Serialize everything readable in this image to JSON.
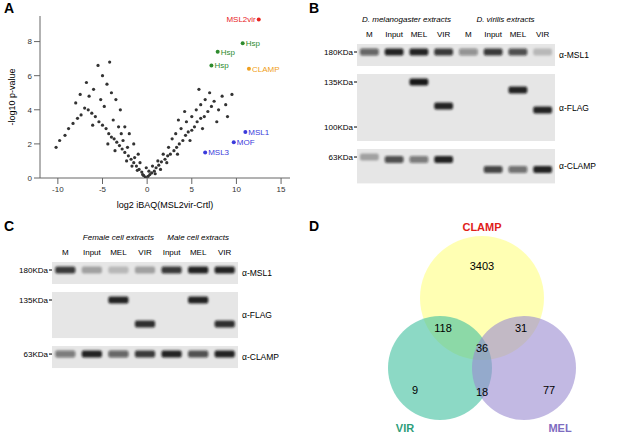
{
  "chart_data": [
    {
      "type": "scatter",
      "panel": "A",
      "x_label": "log2 iBAQ(MSL2vir-Crtl)",
      "y_label": "-log10 p-value",
      "xlim": [
        -12,
        16
      ],
      "ylim": [
        0,
        9.5
      ],
      "xticks": [
        -10,
        -5,
        0,
        5,
        10,
        15
      ],
      "yticks": [
        0,
        2,
        4,
        6,
        8
      ],
      "grid": false,
      "color": "#333333",
      "x": [
        -0.2,
        0.1,
        0.3,
        -0.4,
        0.5,
        -0.6,
        0.8,
        -0.9,
        1.0,
        -1.2,
        1.3,
        -1.5,
        1.6,
        -1.8,
        2.0,
        -2.1,
        2.3,
        -2.5,
        2.6,
        -2.8,
        3.0,
        -3.1,
        3.3,
        -3.4,
        3.6,
        -3.7,
        4.0,
        -4.0,
        4.3,
        -4.3,
        4.6,
        -4.6,
        5.0,
        -5.0,
        5.3,
        -5.4,
        5.6,
        -5.8,
        6.0,
        -6.2,
        6.4,
        -6.6,
        6.8,
        -7.0,
        7.2,
        -7.4,
        7.5,
        -7.8,
        8.0,
        -8.3,
        8.4,
        -8.8,
        9.0,
        -9.2,
        -9.8,
        -10.2,
        -3.0,
        -3.5,
        -4.0,
        -4.5,
        -5.0,
        -5.5,
        -6.0,
        -6.5,
        -2.5,
        -2.0,
        -1.5,
        -1.0,
        -3.8,
        -4.8,
        -5.2,
        -6.8,
        -7.5,
        -8.0,
        -4.2,
        -3.2,
        -2.7,
        -2.2,
        -1.4,
        -0.8,
        0.6,
        1.2,
        1.8,
        2.4,
        2.8,
        3.2,
        3.8,
        4.4,
        5.0,
        5.5,
        6.0,
        6.5,
        7.0,
        3.5,
        4.2,
        5.8,
        2.2,
        1.5,
        0.9,
        -0.5,
        -1.1,
        -1.7,
        -2.3,
        -3.6,
        -4.4,
        3.4,
        4.8,
        0.2,
        -0.1,
        -2.9,
        -6.1,
        6.2,
        7.8,
        8.8,
        9.5
      ],
      "y": [
        0.05,
        0.1,
        0.2,
        0.15,
        0.3,
        0.35,
        0.4,
        0.5,
        0.6,
        0.7,
        0.75,
        0.9,
        0.95,
        1.1,
        1.1,
        1.3,
        1.3,
        1.5,
        1.4,
        1.7,
        1.6,
        1.9,
        1.8,
        2.1,
        2.0,
        2.3,
        2.2,
        2.4,
        2.5,
        2.6,
        2.7,
        2.9,
        2.8,
        3.1,
        3.0,
        3.3,
        3.3,
        3.6,
        3.5,
        3.8,
        3.6,
        4.0,
        3.9,
        4.1,
        4.2,
        3.7,
        4.5,
        3.5,
        4.0,
        3.2,
        4.8,
        2.9,
        3.6,
        2.5,
        2.2,
        1.8,
        4.0,
        4.6,
        5.0,
        5.5,
        6.0,
        6.6,
        5.2,
        4.8,
        3.0,
        2.6,
        2.0,
        1.4,
        3.4,
        4.2,
        4.6,
        5.6,
        4.9,
        4.4,
        6.8,
        3.0,
        2.2,
        1.8,
        1.2,
        0.9,
        0.7,
        1.0,
        1.4,
        1.8,
        2.3,
        2.6,
        2.9,
        3.3,
        3.6,
        4.0,
        4.3,
        4.6,
        5.0,
        3.4,
        3.9,
        5.2,
        0.9,
        0.5,
        0.25,
        0.2,
        0.45,
        0.7,
        1.0,
        1.6,
        2.0,
        1.4,
        2.2,
        0.4,
        0.6,
        2.6,
        3.1,
        2.9,
        3.3,
        4.3,
        4.9
      ],
      "annotations": [
        {
          "text": "MSL2vir",
          "x": 12.5,
          "y": 9.3,
          "color": "#e8251f"
        },
        {
          "text": "Hsp",
          "x": 10.7,
          "y": 7.9,
          "color": "#2e8b2e"
        },
        {
          "text": "Hsp",
          "x": 7.9,
          "y": 7.4,
          "color": "#2e8b2e"
        },
        {
          "text": "Hsp",
          "x": 7.2,
          "y": 6.6,
          "color": "#2e8b2e"
        },
        {
          "text": "CLAMP",
          "x": 11.4,
          "y": 6.4,
          "color": "#f0a020"
        },
        {
          "text": "MSL1",
          "x": 11.0,
          "y": 2.7,
          "color": "#3a3adb"
        },
        {
          "text": "MOF",
          "x": 9.7,
          "y": 2.1,
          "color": "#3a3adb"
        },
        {
          "text": "MSL3",
          "x": 6.5,
          "y": 1.5,
          "color": "#3a3adb"
        }
      ]
    },
    {
      "type": "blot",
      "panel": "B",
      "lanes": [
        "M",
        "Input",
        "MEL",
        "VIR",
        "M",
        "Input",
        "MEL",
        "VIR"
      ],
      "groups": [
        {
          "label": "D. melanogaster extracts",
          "from": 0,
          "to": 3
        },
        {
          "label": "D. virilis extracts",
          "from": 4,
          "to": 7
        }
      ],
      "rows": [
        {
          "antibody": "α-MSL1",
          "markers": [
            {
              "value": 180,
              "label": "180KDa"
            }
          ],
          "band_kda": [
            null,
            180,
            180,
            180,
            null,
            180,
            180,
            180
          ],
          "intensity": [
            0.6,
            0.9,
            0.9,
            0.8,
            0.4,
            0.8,
            0.7,
            0.2
          ]
        },
        {
          "antibody": "α-FLAG",
          "markers": [
            {
              "value": 135,
              "label": "135KDa"
            },
            {
              "value": 100,
              "label": "100KDa"
            }
          ],
          "band_kda": [
            null,
            null,
            135,
            115,
            null,
            null,
            128,
            112
          ],
          "intensity": [
            0,
            0,
            0.95,
            0.9,
            0,
            0,
            0.9,
            0.9
          ]
        },
        {
          "antibody": "α-CLAMP",
          "markers": [
            {
              "value": 63,
              "label": "63KDa"
            }
          ],
          "band_kda": [
            null,
            62,
            62,
            62,
            null,
            58,
            58,
            58
          ],
          "intensity": [
            0.3,
            0.7,
            0.5,
            0.9,
            0,
            0.75,
            0.55,
            0.9
          ]
        }
      ]
    },
    {
      "type": "blot",
      "panel": "C",
      "lanes": [
        "M",
        "Input",
        "MEL",
        "VIR",
        "Input",
        "MEL",
        "VIR"
      ],
      "groups": [
        {
          "label": "Female cell extracts",
          "from": 1,
          "to": 3
        },
        {
          "label": "Male cell extracts",
          "from": 4,
          "to": 6
        }
      ],
      "rows": [
        {
          "antibody": "α-MSL1",
          "markers": [
            {
              "value": 180,
              "label": "180KDa"
            }
          ],
          "band_kda": [
            null,
            180,
            180,
            180,
            180,
            180,
            180
          ],
          "intensity": [
            0.8,
            0.3,
            0.2,
            0.3,
            0.8,
            0.9,
            0.9
          ]
        },
        {
          "antibody": "α-FLAG",
          "markers": [
            {
              "value": 135,
              "label": "135KDa"
            }
          ],
          "band_kda": [
            null,
            null,
            135,
            115,
            null,
            135,
            115
          ],
          "intensity": [
            0,
            0,
            0.9,
            0.85,
            0,
            0.9,
            0.85
          ]
        },
        {
          "antibody": "α-CLAMP",
          "markers": [
            {
              "value": 63,
              "label": "63KDa"
            }
          ],
          "band_kda": [
            null,
            63,
            63,
            63,
            63,
            63,
            63
          ],
          "intensity": [
            0.5,
            0.9,
            0.6,
            0.8,
            0.9,
            0.7,
            0.9
          ]
        }
      ]
    },
    {
      "type": "venn",
      "panel": "D",
      "sets": [
        {
          "name": "CLAMP",
          "color": "#ffff80"
        },
        {
          "name": "VIR",
          "color": "#40bf9f"
        },
        {
          "name": "MEL",
          "color": "#9a8ad0"
        }
      ],
      "regions": [
        {
          "sets": [
            "CLAMP"
          ],
          "value": 3403
        },
        {
          "sets": [
            "CLAMP",
            "VIR"
          ],
          "value": 118
        },
        {
          "sets": [
            "CLAMP",
            "MEL"
          ],
          "value": 31
        },
        {
          "sets": [
            "CLAMP",
            "VIR",
            "MEL"
          ],
          "value": 36
        },
        {
          "sets": [
            "VIR"
          ],
          "value": 9
        },
        {
          "sets": [
            "VIR",
            "MEL"
          ],
          "value": 18
        },
        {
          "sets": [
            "MEL"
          ],
          "value": 77
        }
      ]
    }
  ]
}
